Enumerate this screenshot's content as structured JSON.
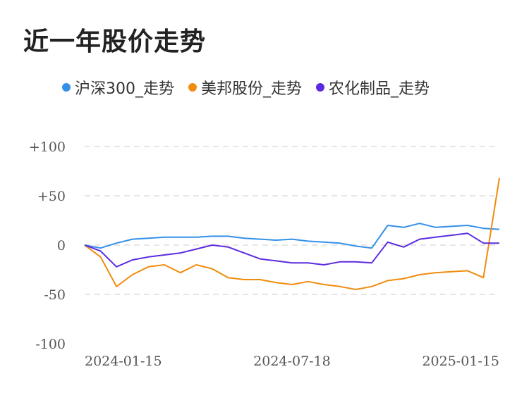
{
  "title": "近一年股价走势",
  "colors": {
    "grid": "#e6e6e6",
    "tick_text": "#555555"
  },
  "chart_data": {
    "type": "line",
    "title": "近一年股价走势",
    "xlabel": "",
    "ylabel": "",
    "ylim": [
      -100,
      100
    ],
    "y_ticks": [
      {
        "value": 100,
        "label": "+100"
      },
      {
        "value": 50,
        "label": "+50"
      },
      {
        "value": 0,
        "label": "0"
      },
      {
        "value": -50,
        "label": "-50"
      },
      {
        "value": -100,
        "label": "-100"
      }
    ],
    "x_ticks": [
      "2024-01-15",
      "2024-07-18",
      "2025-01-15"
    ],
    "x": [
      0,
      10,
      20,
      30,
      40,
      50,
      60,
      70,
      80,
      90,
      100,
      110,
      120,
      130,
      140,
      150,
      160,
      170,
      180,
      190,
      200,
      210,
      220,
      230,
      240,
      250,
      260
    ],
    "grid": true,
    "legend_position": "top",
    "series": [
      {
        "name": "沪深300_走势",
        "color": "#3390e8",
        "values": [
          0,
          -3,
          2,
          6,
          7,
          8,
          8,
          8,
          9,
          9,
          7,
          6,
          5,
          6,
          4,
          3,
          2,
          -1,
          -3,
          20,
          18,
          22,
          18,
          19,
          20,
          17,
          16
        ]
      },
      {
        "name": "美邦股份_走势",
        "color": "#f08c0e",
        "values": [
          0,
          -12,
          -42,
          -30,
          -22,
          -20,
          -28,
          -20,
          -24,
          -33,
          -35,
          -35,
          -38,
          -40,
          -37,
          -40,
          -42,
          -45,
          -42,
          -36,
          -34,
          -30,
          -28,
          -27,
          -26,
          -33,
          68
        ]
      },
      {
        "name": "农化制品_走势",
        "color": "#5b2be0",
        "values": [
          0,
          -6,
          -22,
          -15,
          -12,
          -10,
          -8,
          -4,
          0,
          -2,
          -8,
          -14,
          -16,
          -18,
          -18,
          -20,
          -17,
          -17,
          -18,
          3,
          -2,
          6,
          8,
          10,
          12,
          2,
          2
        ]
      }
    ]
  }
}
